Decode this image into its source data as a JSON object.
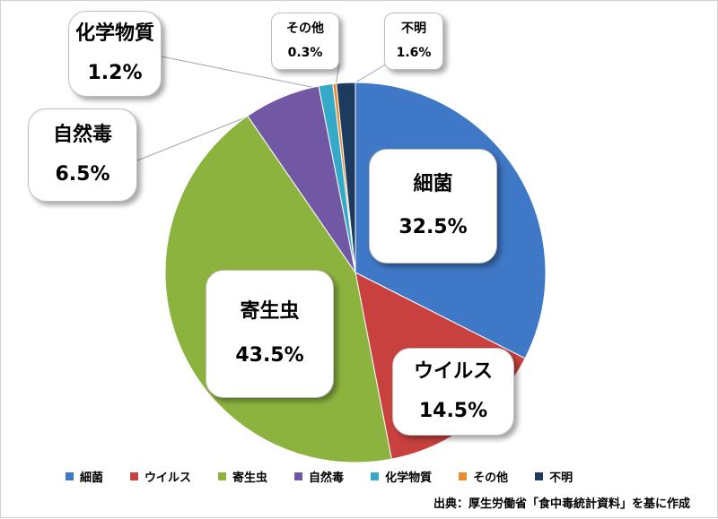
{
  "chart_data": {
    "type": "pie",
    "start_angle_deg": 0,
    "direction": "clockwise",
    "slices": [
      {
        "name": "細菌",
        "value": 32.5,
        "label": "32.5%",
        "color": "#3F78C6"
      },
      {
        "name": "ウイルス",
        "value": 14.5,
        "label": "14.5%",
        "color": "#C8413E"
      },
      {
        "name": "寄生虫",
        "value": 43.5,
        "label": "43.5%",
        "color": "#8DB33F"
      },
      {
        "name": "自然毒",
        "value": 6.5,
        "label": "6.5%",
        "color": "#7257A4"
      },
      {
        "name": "化学物質",
        "value": 1.2,
        "label": "1.2%",
        "color": "#35A9C8"
      },
      {
        "name": "その他",
        "value": 0.3,
        "label": "0.3%",
        "color": "#EC8A2E"
      },
      {
        "name": "不明",
        "value": 1.6,
        "label": "1.6%",
        "color": "#1D3A5F"
      }
    ],
    "legend_placement": "bottom",
    "source_note": "出典：厚生労働省「食中毒統計資料」を基に作成"
  }
}
